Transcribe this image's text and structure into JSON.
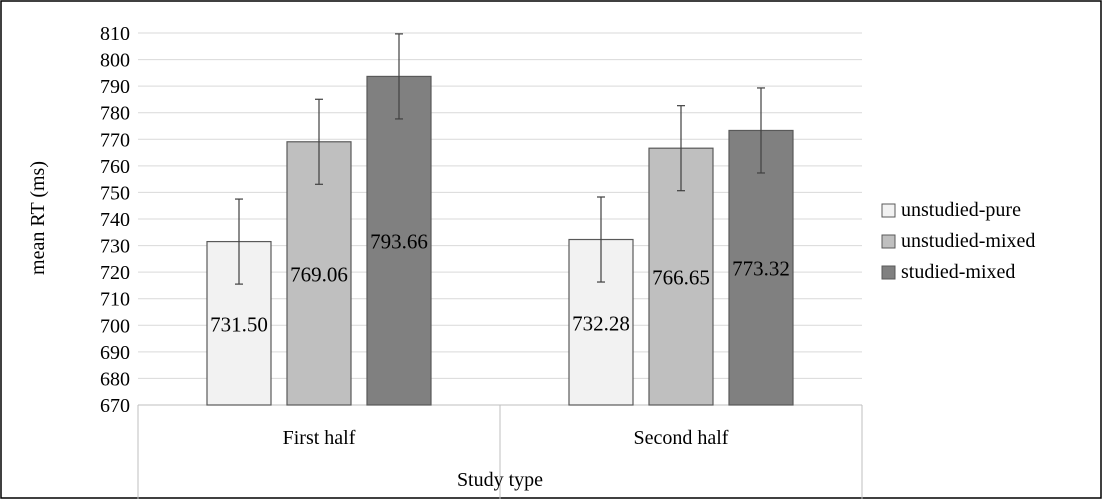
{
  "chart_data": {
    "type": "bar",
    "categories": [
      "First half",
      "Second half"
    ],
    "series": [
      {
        "name": "unstudied-pure",
        "values": [
          731.5,
          732.28
        ],
        "errors": [
          16,
          16
        ],
        "color": "#f2f2f2"
      },
      {
        "name": "unstudied-mixed",
        "values": [
          769.06,
          766.65
        ],
        "errors": [
          16,
          16
        ],
        "color": "#bfbfbf"
      },
      {
        "name": "studied-mixed",
        "values": [
          793.66,
          773.32
        ],
        "errors": [
          16,
          16
        ],
        "color": "#808080"
      }
    ],
    "data_labels": [
      [
        "731.50",
        "732.28"
      ],
      [
        "769.06",
        "766.65"
      ],
      [
        "793.66",
        "773.32"
      ]
    ],
    "title": "",
    "xlabel": "Study type",
    "ylabel": "mean RT (ms)",
    "ylim": [
      670,
      810
    ],
    "ytick_step": 10,
    "grid": true,
    "legend_position": "right"
  }
}
